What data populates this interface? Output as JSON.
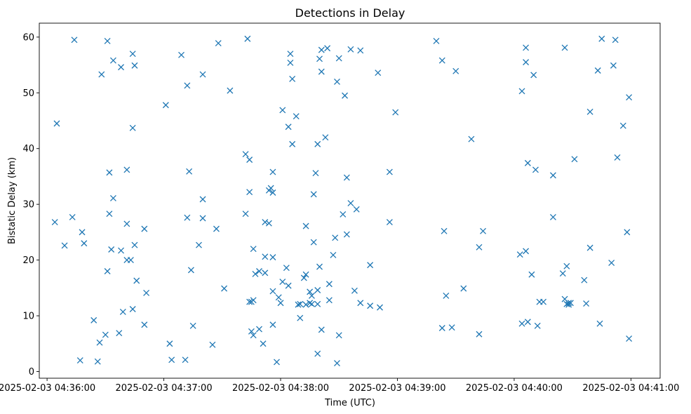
{
  "chart_data": {
    "type": "scatter",
    "title": "Detections in Delay",
    "xlabel": "Time (UTC)",
    "ylabel": "Bistatic Delay (km)",
    "x_unit": "time of day (HH:MM:SS, 2025-02-03 UTC)",
    "xlim": [
      "04:35:56",
      "04:41:15"
    ],
    "ylim": [
      -1.2,
      62.5
    ],
    "xticks": [
      "2025-02-03 04:36:00",
      "2025-02-03 04:37:00",
      "2025-02-03 04:38:00",
      "2025-02-03 04:39:00",
      "2025-02-03 04:40:00",
      "2025-02-03 04:41:00"
    ],
    "yticks": [
      0,
      10,
      20,
      30,
      40,
      50,
      60
    ],
    "grid": false,
    "marker": "x",
    "color": "#1f77b4",
    "points": [
      [
        "04:36:04",
        26.8
      ],
      [
        "04:36:05",
        44.5
      ],
      [
        "04:36:09",
        22.6
      ],
      [
        "04:36:13",
        27.7
      ],
      [
        "04:36:14",
        59.5
      ],
      [
        "04:36:17",
        2.0
      ],
      [
        "04:36:18",
        25.0
      ],
      [
        "04:36:19",
        23.0
      ],
      [
        "04:36:24",
        9.2
      ],
      [
        "04:36:26",
        1.8
      ],
      [
        "04:36:27",
        5.2
      ],
      [
        "04:36:28",
        53.3
      ],
      [
        "04:36:30",
        6.6
      ],
      [
        "04:36:31",
        18.0
      ],
      [
        "04:36:31",
        59.3
      ],
      [
        "04:36:32",
        35.7
      ],
      [
        "04:36:32",
        28.3
      ],
      [
        "04:36:33",
        21.9
      ],
      [
        "04:36:34",
        31.1
      ],
      [
        "04:36:34",
        55.8
      ],
      [
        "04:36:37",
        6.9
      ],
      [
        "04:36:38",
        21.7
      ],
      [
        "04:36:38",
        54.6
      ],
      [
        "04:36:39",
        10.7
      ],
      [
        "04:36:41",
        36.2
      ],
      [
        "04:36:41",
        26.5
      ],
      [
        "04:36:41",
        20.0
      ],
      [
        "04:36:43",
        20.0
      ],
      [
        "04:36:44",
        11.2
      ],
      [
        "04:36:44",
        43.7
      ],
      [
        "04:36:44",
        57.0
      ],
      [
        "04:36:45",
        54.9
      ],
      [
        "04:36:45",
        22.7
      ],
      [
        "04:36:46",
        16.3
      ],
      [
        "04:36:50",
        8.4
      ],
      [
        "04:36:50",
        25.6
      ],
      [
        "04:36:51",
        14.1
      ],
      [
        "04:37:01",
        47.8
      ],
      [
        "04:37:03",
        5.0
      ],
      [
        "04:37:04",
        2.1
      ],
      [
        "04:37:09",
        56.8
      ],
      [
        "04:37:11",
        2.1
      ],
      [
        "04:37:12",
        51.3
      ],
      [
        "04:37:12",
        27.6
      ],
      [
        "04:37:13",
        35.9
      ],
      [
        "04:37:15",
        8.2
      ],
      [
        "04:37:14",
        18.2
      ],
      [
        "04:37:18",
        22.7
      ],
      [
        "04:37:20",
        53.3
      ],
      [
        "04:37:20",
        27.5
      ],
      [
        "04:37:20",
        30.9
      ],
      [
        "04:37:25",
        4.8
      ],
      [
        "04:37:27",
        25.6
      ],
      [
        "04:37:28",
        58.9
      ],
      [
        "04:37:31",
        14.9
      ],
      [
        "04:37:34",
        50.4
      ],
      [
        "04:37:42",
        39.0
      ],
      [
        "04:37:43",
        59.7
      ],
      [
        "04:37:42",
        28.3
      ],
      [
        "04:37:44",
        38.0
      ],
      [
        "04:37:44",
        32.2
      ],
      [
        "04:37:44",
        12.5
      ],
      [
        "04:37:45",
        7.2
      ],
      [
        "04:37:45",
        12.5
      ],
      [
        "04:37:46",
        6.5
      ],
      [
        "04:37:46",
        22.0
      ],
      [
        "04:37:47",
        17.5
      ],
      [
        "04:37:46",
        12.8
      ],
      [
        "04:37:49",
        18.0
      ],
      [
        "04:37:49",
        7.6
      ],
      [
        "04:37:51",
        5.0
      ],
      [
        "04:37:52",
        26.8
      ],
      [
        "04:37:52",
        20.6
      ],
      [
        "04:37:52",
        17.7
      ],
      [
        "04:37:54",
        26.6
      ],
      [
        "04:37:54",
        32.5
      ],
      [
        "04:37:55",
        32.9
      ],
      [
        "04:37:56",
        32.1
      ],
      [
        "04:37:56",
        14.4
      ],
      [
        "04:37:56",
        8.4
      ],
      [
        "04:37:56",
        20.5
      ],
      [
        "04:37:56",
        35.8
      ],
      [
        "04:37:58",
        1.7
      ],
      [
        "04:37:59",
        13.3
      ],
      [
        "04:38:00",
        12.3
      ],
      [
        "04:38:01",
        16.1
      ],
      [
        "04:38:01",
        46.9
      ],
      [
        "04:38:03",
        18.6
      ],
      [
        "04:38:04",
        15.4
      ],
      [
        "04:38:04",
        43.9
      ],
      [
        "04:38:05",
        57.0
      ],
      [
        "04:38:05",
        55.4
      ],
      [
        "04:38:06",
        52.5
      ],
      [
        "04:38:06",
        40.8
      ],
      [
        "04:38:08",
        45.8
      ],
      [
        "04:38:09",
        12.0
      ],
      [
        "04:38:10",
        9.6
      ],
      [
        "04:38:10",
        12.1
      ],
      [
        "04:38:12",
        16.8
      ],
      [
        "04:38:13",
        17.4
      ],
      [
        "04:38:13",
        26.1
      ],
      [
        "04:38:13",
        12.0
      ],
      [
        "04:38:15",
        14.3
      ],
      [
        "04:38:15",
        12.3
      ],
      [
        "04:38:16",
        13.6
      ],
      [
        "04:38:16",
        12.1
      ],
      [
        "04:38:17",
        31.8
      ],
      [
        "04:38:17",
        23.2
      ],
      [
        "04:38:18",
        35.6
      ],
      [
        "04:38:19",
        3.2
      ],
      [
        "04:38:19",
        14.6
      ],
      [
        "04:38:19",
        40.8
      ],
      [
        "04:38:19",
        12.1
      ],
      [
        "04:38:20",
        56.1
      ],
      [
        "04:38:20",
        18.8
      ],
      [
        "04:38:21",
        7.5
      ],
      [
        "04:38:21",
        57.7
      ],
      [
        "04:38:21",
        53.8
      ],
      [
        "04:38:23",
        42.0
      ],
      [
        "04:38:24",
        58.0
      ],
      [
        "04:38:25",
        15.7
      ],
      [
        "04:38:25",
        12.8
      ],
      [
        "04:38:27",
        20.9
      ],
      [
        "04:38:28",
        24.0
      ],
      [
        "04:38:29",
        52.0
      ],
      [
        "04:38:29",
        1.5
      ],
      [
        "04:38:30",
        6.5
      ],
      [
        "04:38:30",
        56.2
      ],
      [
        "04:38:32",
        28.2
      ],
      [
        "04:38:33",
        49.5
      ],
      [
        "04:38:34",
        34.8
      ],
      [
        "04:38:34",
        24.6
      ],
      [
        "04:38:36",
        30.2
      ],
      [
        "04:38:36",
        57.8
      ],
      [
        "04:38:38",
        14.5
      ],
      [
        "04:38:39",
        29.1
      ],
      [
        "04:38:41",
        57.6
      ],
      [
        "04:38:41",
        12.3
      ],
      [
        "04:38:46",
        11.8
      ],
      [
        "04:38:46",
        19.1
      ],
      [
        "04:38:50",
        53.6
      ],
      [
        "04:38:51",
        11.5
      ],
      [
        "04:38:56",
        35.8
      ],
      [
        "04:38:56",
        26.8
      ],
      [
        "04:38:59",
        46.5
      ],
      [
        "04:39:20",
        59.3
      ],
      [
        "04:39:23",
        7.8
      ],
      [
        "04:39:23",
        55.8
      ],
      [
        "04:39:24",
        25.2
      ],
      [
        "04:39:25",
        13.6
      ],
      [
        "04:39:28",
        7.9
      ],
      [
        "04:39:30",
        53.9
      ],
      [
        "04:39:34",
        14.9
      ],
      [
        "04:39:38",
        41.7
      ],
      [
        "04:39:42",
        6.7
      ],
      [
        "04:39:42",
        22.3
      ],
      [
        "04:39:44",
        25.2
      ],
      [
        "04:40:03",
        21.0
      ],
      [
        "04:40:04",
        8.6
      ],
      [
        "04:40:04",
        50.3
      ],
      [
        "04:40:06",
        58.1
      ],
      [
        "04:40:06",
        21.6
      ],
      [
        "04:40:06",
        55.5
      ],
      [
        "04:40:07",
        37.4
      ],
      [
        "04:40:07",
        8.9
      ],
      [
        "04:40:09",
        17.4
      ],
      [
        "04:40:10",
        53.2
      ],
      [
        "04:40:11",
        36.2
      ],
      [
        "04:40:12",
        8.2
      ],
      [
        "04:40:13",
        12.5
      ],
      [
        "04:40:15",
        12.5
      ],
      [
        "04:40:20",
        35.2
      ],
      [
        "04:40:20",
        27.7
      ],
      [
        "04:40:25",
        17.6
      ],
      [
        "04:40:26",
        58.1
      ],
      [
        "04:40:26",
        13.0
      ],
      [
        "04:40:27",
        12.1
      ],
      [
        "04:40:27",
        18.9
      ],
      [
        "04:40:28",
        12.3
      ],
      [
        "04:40:28",
        12.0
      ],
      [
        "04:40:29",
        12.3
      ],
      [
        "04:40:31",
        38.1
      ],
      [
        "04:40:36",
        16.4
      ],
      [
        "04:40:37",
        12.2
      ],
      [
        "04:40:39",
        46.6
      ],
      [
        "04:40:39",
        22.2
      ],
      [
        "04:40:43",
        54.0
      ],
      [
        "04:40:44",
        8.6
      ],
      [
        "04:40:45",
        59.7
      ],
      [
        "04:40:50",
        19.5
      ],
      [
        "04:40:51",
        54.9
      ],
      [
        "04:40:52",
        59.5
      ],
      [
        "04:40:53",
        38.4
      ],
      [
        "04:40:56",
        44.1
      ],
      [
        "04:40:58",
        25.0
      ],
      [
        "04:40:59",
        49.2
      ],
      [
        "04:40:59",
        5.9
      ]
    ]
  }
}
